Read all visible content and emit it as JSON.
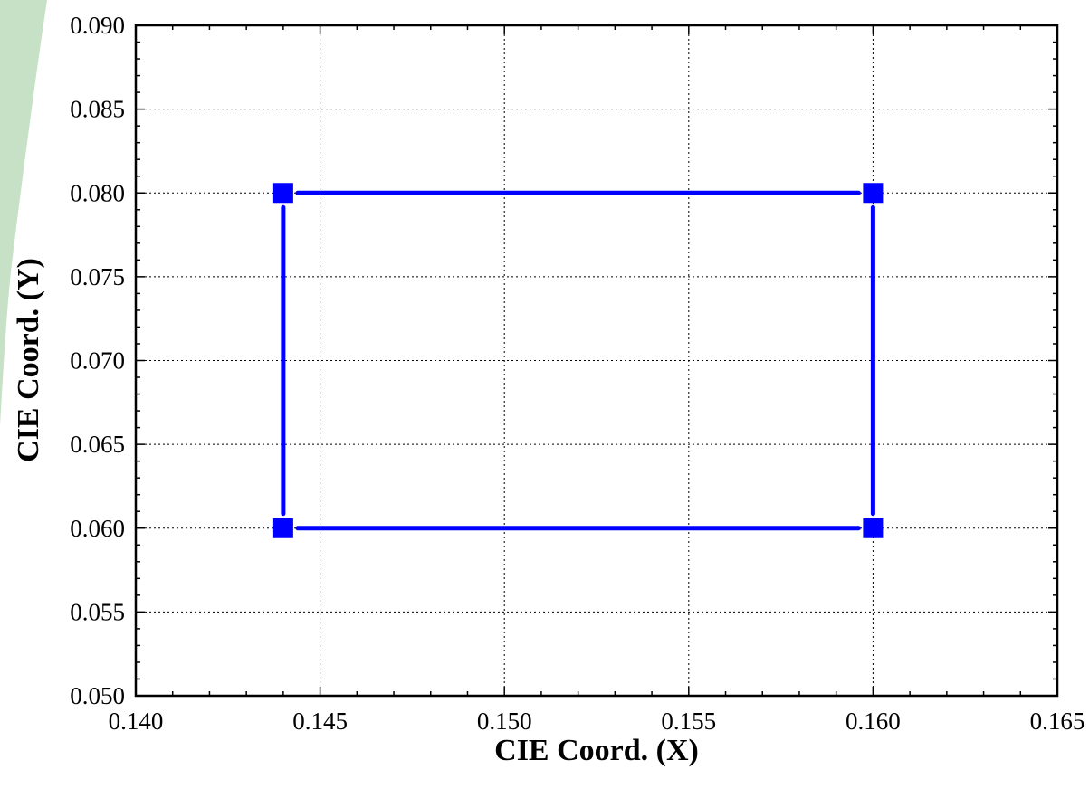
{
  "chart_data": {
    "type": "line",
    "xlabel": "CIE Coord. (X)",
    "ylabel": "CIE Coord. (Y)",
    "xlim": [
      0.14,
      0.165
    ],
    "ylim": [
      0.05,
      0.09
    ],
    "x_ticks": [
      "0.140",
      "0.145",
      "0.150",
      "0.155",
      "0.160",
      "0.165"
    ],
    "y_ticks": [
      "0.050",
      "0.055",
      "0.060",
      "0.065",
      "0.070",
      "0.075",
      "0.080",
      "0.085",
      "0.090"
    ],
    "grid": true,
    "marker": "square",
    "series": [
      {
        "x": [
          0.144,
          0.16,
          0.16,
          0.144,
          0.144
        ],
        "y": [
          0.08,
          0.08,
          0.06,
          0.06,
          0.08
        ],
        "color": "#0000ff"
      }
    ]
  },
  "decor": {
    "accent_color": "#b9d9b9"
  }
}
